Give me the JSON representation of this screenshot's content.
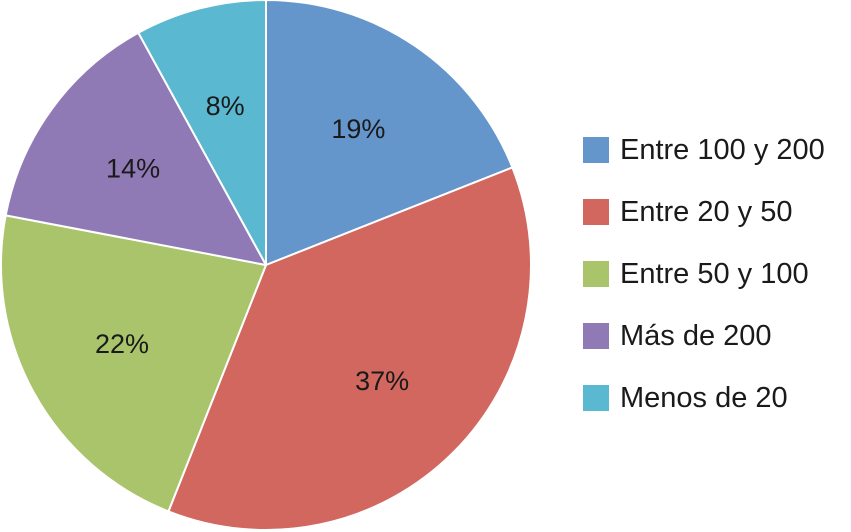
{
  "chart_data": {
    "type": "pie",
    "categories": [
      "Entre 100 y 200",
      "Entre 20 y 50",
      "Entre 50 y 100",
      "Más de 200",
      "Menos de 20"
    ],
    "values": [
      19,
      37,
      22,
      14,
      8
    ],
    "value_labels": [
      "19%",
      "37%",
      "22%",
      "14%",
      "8%"
    ],
    "colors": [
      "#6496cc",
      "#d1675f",
      "#a9c46a",
      "#8f7ab6",
      "#5ab9d0"
    ],
    "start_angle": "12 o'clock",
    "direction": "clockwise",
    "legend_position": "right"
  }
}
